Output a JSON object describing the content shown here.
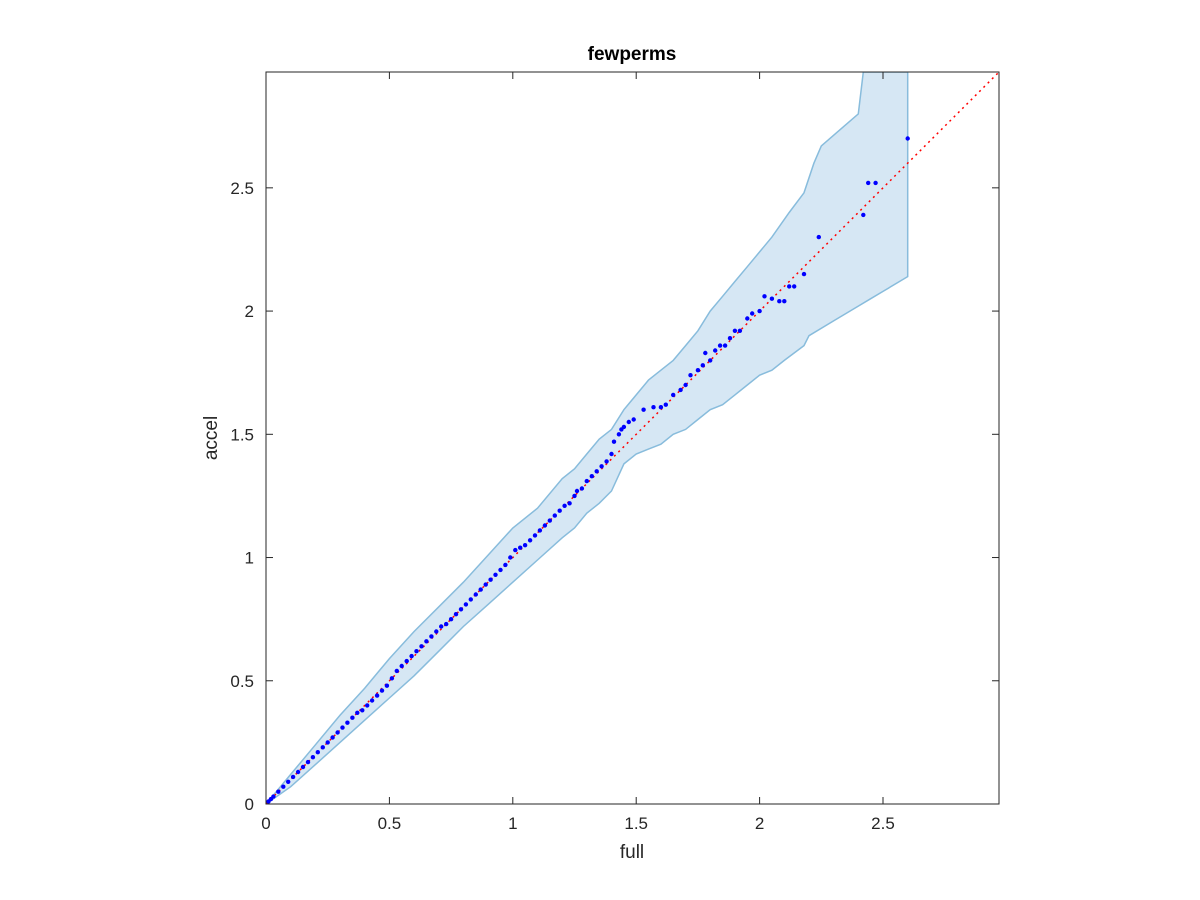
{
  "chart_data": {
    "type": "scatter",
    "title": "fewperms",
    "xlabel": "full",
    "ylabel": "accel",
    "xlim": [
      0,
      2.97
    ],
    "ylim": [
      0,
      2.97
    ],
    "xticks": [
      0,
      0.5,
      1,
      1.5,
      2,
      2.5
    ],
    "yticks": [
      0,
      0.5,
      1,
      1.5,
      2,
      2.5
    ],
    "xtick_labels": [
      "0",
      "0.5",
      "1",
      "1.5",
      "2",
      "2.5"
    ],
    "ytick_labels": [
      "0",
      "0.5",
      "1",
      "1.5",
      "2",
      "2.5"
    ],
    "grid": false,
    "reference_line": {
      "style": "dotted",
      "color": "#ff0000",
      "from": [
        0,
        0
      ],
      "to": [
        2.97,
        2.97
      ]
    },
    "confidence_band": {
      "fill": "#d6e7f4",
      "edge": "#88bcdc",
      "upper": [
        [
          0,
          0
        ],
        [
          0.1,
          0.12
        ],
        [
          0.2,
          0.24
        ],
        [
          0.3,
          0.36
        ],
        [
          0.4,
          0.47
        ],
        [
          0.5,
          0.59
        ],
        [
          0.6,
          0.7
        ],
        [
          0.7,
          0.8
        ],
        [
          0.8,
          0.9
        ],
        [
          0.9,
          1.01
        ],
        [
          1.0,
          1.12
        ],
        [
          1.1,
          1.2
        ],
        [
          1.2,
          1.32
        ],
        [
          1.25,
          1.36
        ],
        [
          1.3,
          1.42
        ],
        [
          1.35,
          1.48
        ],
        [
          1.4,
          1.52
        ],
        [
          1.45,
          1.6
        ],
        [
          1.5,
          1.66
        ],
        [
          1.55,
          1.72
        ],
        [
          1.6,
          1.76
        ],
        [
          1.65,
          1.8
        ],
        [
          1.7,
          1.86
        ],
        [
          1.75,
          1.92
        ],
        [
          1.8,
          2.0
        ],
        [
          1.85,
          2.06
        ],
        [
          1.9,
          2.12
        ],
        [
          1.95,
          2.18
        ],
        [
          2.0,
          2.24
        ],
        [
          2.05,
          2.3
        ],
        [
          2.12,
          2.4
        ],
        [
          2.18,
          2.48
        ],
        [
          2.22,
          2.6
        ],
        [
          2.25,
          2.67
        ],
        [
          2.4,
          2.8
        ],
        [
          2.42,
          2.97
        ],
        [
          2.6,
          2.97
        ]
      ],
      "lower": [
        [
          0,
          0
        ],
        [
          0.1,
          0.07
        ],
        [
          0.2,
          0.16
        ],
        [
          0.3,
          0.25
        ],
        [
          0.4,
          0.34
        ],
        [
          0.5,
          0.43
        ],
        [
          0.6,
          0.52
        ],
        [
          0.7,
          0.62
        ],
        [
          0.8,
          0.72
        ],
        [
          0.9,
          0.81
        ],
        [
          1.0,
          0.9
        ],
        [
          1.1,
          0.99
        ],
        [
          1.2,
          1.08
        ],
        [
          1.25,
          1.12
        ],
        [
          1.3,
          1.18
        ],
        [
          1.35,
          1.22
        ],
        [
          1.4,
          1.27
        ],
        [
          1.45,
          1.38
        ],
        [
          1.5,
          1.42
        ],
        [
          1.55,
          1.44
        ],
        [
          1.6,
          1.46
        ],
        [
          1.65,
          1.5
        ],
        [
          1.7,
          1.52
        ],
        [
          1.75,
          1.56
        ],
        [
          1.8,
          1.6
        ],
        [
          1.85,
          1.62
        ],
        [
          1.9,
          1.66
        ],
        [
          1.95,
          1.7
        ],
        [
          2.0,
          1.74
        ],
        [
          2.05,
          1.76
        ],
        [
          2.1,
          1.8
        ],
        [
          2.18,
          1.86
        ],
        [
          2.2,
          1.9
        ],
        [
          2.3,
          1.96
        ],
        [
          2.4,
          2.02
        ],
        [
          2.45,
          2.05
        ],
        [
          2.5,
          2.08
        ],
        [
          2.6,
          2.14
        ]
      ]
    },
    "series": [
      {
        "color": "#0000ff",
        "x": [
          0.01,
          0.02,
          0.03,
          0.05,
          0.07,
          0.09,
          0.11,
          0.13,
          0.15,
          0.17,
          0.19,
          0.21,
          0.23,
          0.25,
          0.27,
          0.29,
          0.31,
          0.33,
          0.35,
          0.37,
          0.39,
          0.41,
          0.43,
          0.45,
          0.47,
          0.49,
          0.51,
          0.53,
          0.55,
          0.57,
          0.59,
          0.61,
          0.63,
          0.65,
          0.67,
          0.69,
          0.71,
          0.73,
          0.75,
          0.77,
          0.79,
          0.81,
          0.83,
          0.85,
          0.87,
          0.89,
          0.91,
          0.93,
          0.95,
          0.97,
          0.99,
          1.01,
          1.03,
          1.05,
          1.07,
          1.09,
          1.11,
          1.13,
          1.15,
          1.17,
          1.19,
          1.21,
          1.23,
          1.25,
          1.26,
          1.28,
          1.3,
          1.32,
          1.34,
          1.36,
          1.38,
          1.4,
          1.41,
          1.43,
          1.44,
          1.45,
          1.47,
          1.49,
          1.53,
          1.57,
          1.6,
          1.62,
          1.65,
          1.68,
          1.7,
          1.72,
          1.75,
          1.77,
          1.78,
          1.8,
          1.82,
          1.84,
          1.86,
          1.88,
          1.9,
          1.92,
          1.95,
          1.97,
          2.0,
          2.02,
          2.05,
          2.08,
          2.1,
          2.12,
          2.14,
          2.18,
          2.24,
          2.42,
          2.44,
          2.47,
          2.6
        ],
        "y": [
          0.01,
          0.02,
          0.03,
          0.05,
          0.07,
          0.09,
          0.11,
          0.13,
          0.15,
          0.17,
          0.19,
          0.21,
          0.23,
          0.25,
          0.27,
          0.29,
          0.31,
          0.33,
          0.35,
          0.37,
          0.38,
          0.4,
          0.42,
          0.44,
          0.46,
          0.48,
          0.51,
          0.54,
          0.56,
          0.58,
          0.6,
          0.62,
          0.64,
          0.66,
          0.68,
          0.7,
          0.72,
          0.73,
          0.75,
          0.77,
          0.79,
          0.81,
          0.83,
          0.85,
          0.87,
          0.89,
          0.91,
          0.93,
          0.95,
          0.97,
          1.0,
          1.03,
          1.04,
          1.05,
          1.07,
          1.09,
          1.11,
          1.13,
          1.15,
          1.17,
          1.19,
          1.21,
          1.22,
          1.25,
          1.27,
          1.28,
          1.31,
          1.33,
          1.35,
          1.37,
          1.39,
          1.42,
          1.47,
          1.5,
          1.52,
          1.53,
          1.55,
          1.56,
          1.6,
          1.61,
          1.61,
          1.62,
          1.66,
          1.68,
          1.7,
          1.74,
          1.76,
          1.78,
          1.83,
          1.8,
          1.84,
          1.86,
          1.86,
          1.89,
          1.92,
          1.92,
          1.97,
          1.99,
          2.0,
          2.06,
          2.05,
          2.04,
          2.04,
          2.1,
          2.1,
          2.15,
          2.3,
          2.39,
          2.52,
          2.52,
          2.7
        ]
      }
    ]
  }
}
